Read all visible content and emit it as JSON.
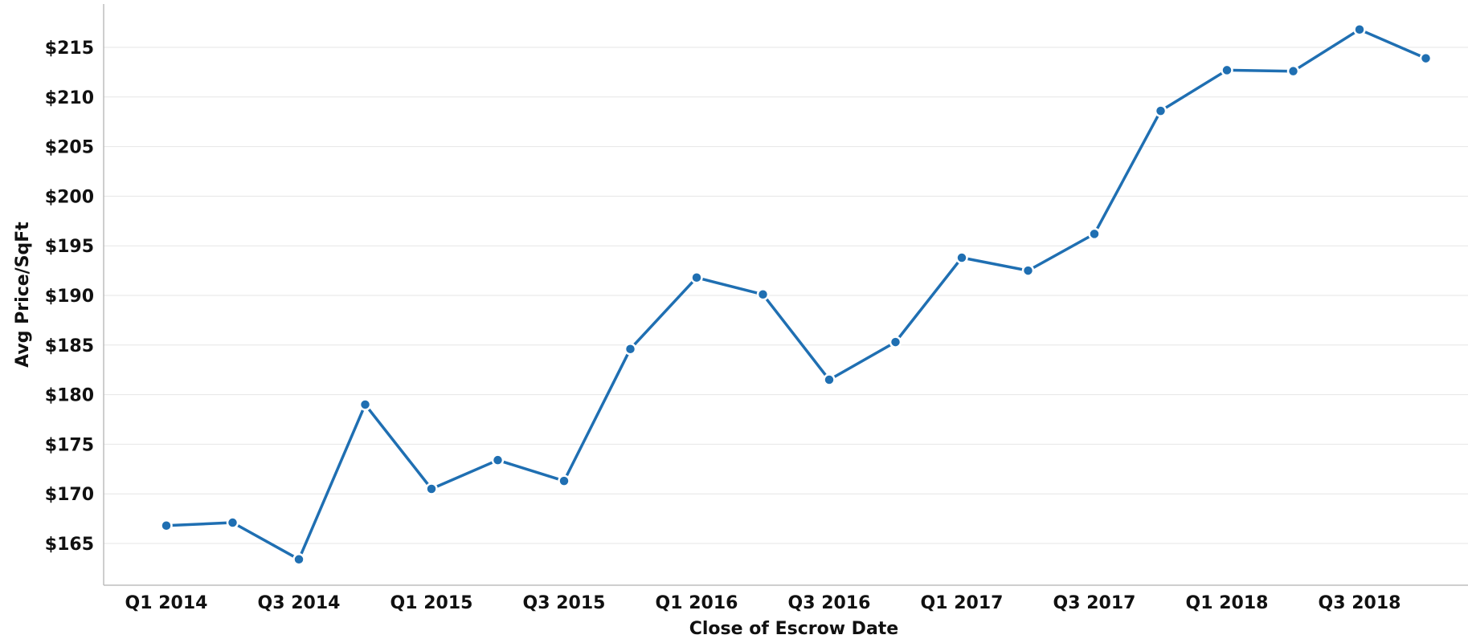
{
  "chart_data": {
    "type": "line",
    "xlabel": "Close of Escrow Date",
    "ylabel": "Avg Price/SqFt",
    "ylim": [
      161,
      219
    ],
    "yticks": [
      165,
      170,
      175,
      180,
      185,
      190,
      195,
      200,
      205,
      210,
      215
    ],
    "ytick_labels": [
      "$165",
      "$170",
      "$175",
      "$180",
      "$185",
      "$190",
      "$195",
      "$200",
      "$205",
      "$210",
      "$215"
    ],
    "x": [
      "Q1 2014",
      "Q2 2014",
      "Q3 2014",
      "Q4 2014",
      "Q1 2015",
      "Q2 2015",
      "Q3 2015",
      "Q4 2015",
      "Q1 2016",
      "Q2 2016",
      "Q3 2016",
      "Q4 2016",
      "Q1 2017",
      "Q2 2017",
      "Q3 2017",
      "Q4 2017",
      "Q1 2018",
      "Q2 2018",
      "Q3 2018",
      "Q4 2018"
    ],
    "xtick_labels": [
      "Q1 2014",
      "Q3 2014",
      "Q1 2015",
      "Q3 2015",
      "Q1 2016",
      "Q3 2016",
      "Q1 2017",
      "Q3 2017",
      "Q1 2018",
      "Q3 2018"
    ],
    "series": [
      {
        "values": [
          166.8,
          167.1,
          163.4,
          179.0,
          170.5,
          173.4,
          171.3,
          184.6,
          191.8,
          190.1,
          181.5,
          185.3,
          193.8,
          192.5,
          196.2,
          208.6,
          212.7,
          212.6,
          216.8,
          213.9
        ]
      }
    ],
    "grid": true,
    "legend": "none",
    "colors": {
      "line": "#1f6fb2",
      "marker_fill": "#1f6fb2",
      "marker_stroke": "#ffffff",
      "grid": "#e6e6e6",
      "axis": "#bdbdbd"
    }
  }
}
